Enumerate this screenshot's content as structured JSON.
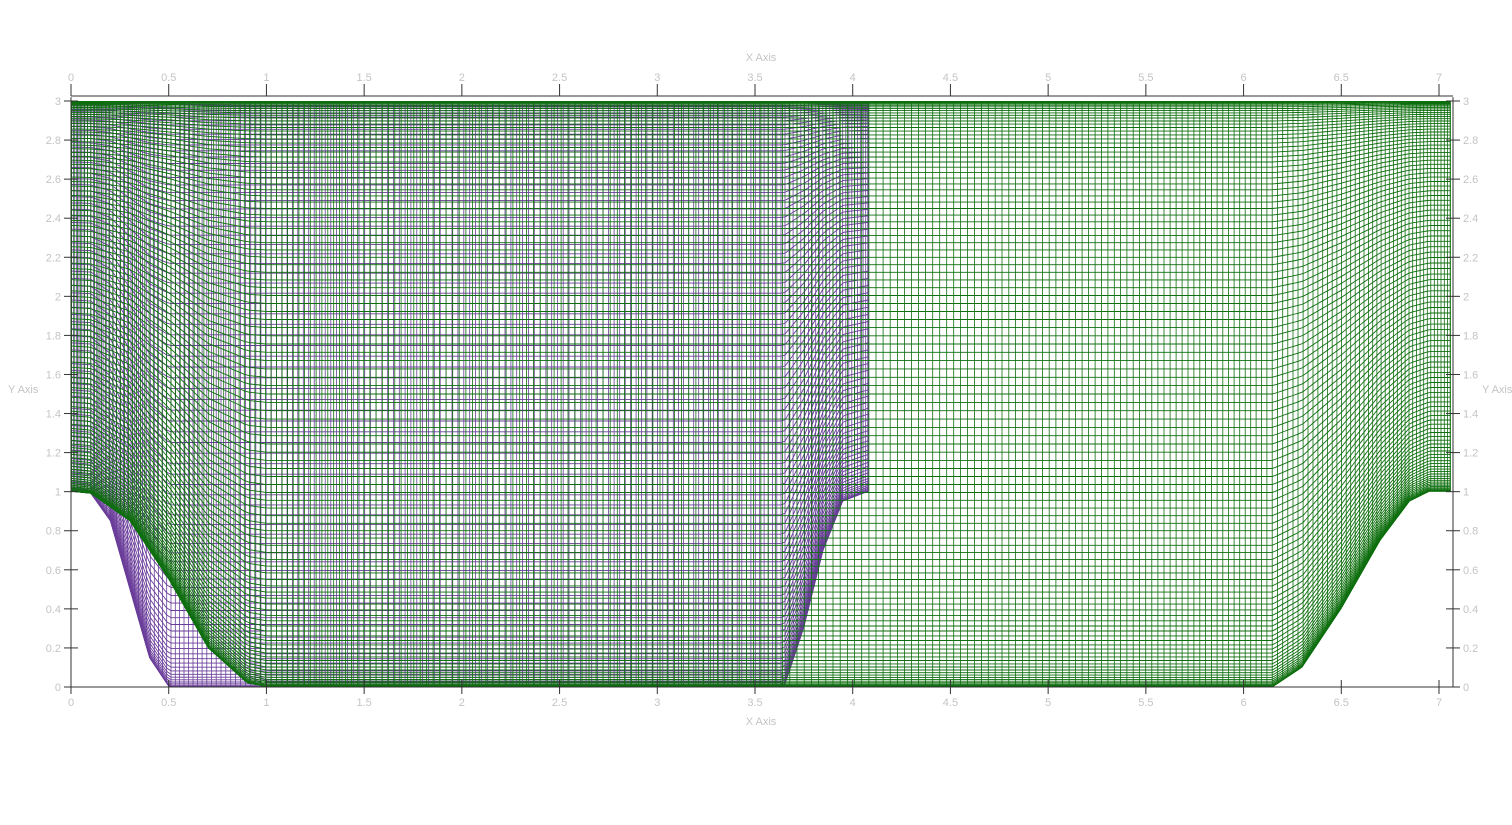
{
  "chart_data": {
    "type": "mesh",
    "xlabel_top": "X Axis",
    "xlabel_bottom": "X Axis",
    "ylabel_left": "Y Axis",
    "ylabel_right": "Y Axis",
    "xlim": [
      0,
      7.06
    ],
    "ylim": [
      0,
      3.02
    ],
    "x_ticks": [
      "0",
      "0.5",
      "1",
      "1.5",
      "2",
      "2.5",
      "3",
      "3.5",
      "4",
      "4.5",
      "5",
      "5.5",
      "6",
      "6.5",
      "7"
    ],
    "y_ticks": [
      "0",
      "0.2",
      "0.4",
      "0.6",
      "0.8",
      "1",
      "1.2",
      "1.4",
      "1.6",
      "1.8",
      "2",
      "2.2",
      "2.4",
      "2.6",
      "2.8",
      "3"
    ],
    "grid": false,
    "colors": {
      "mesh_green": "#0d6e0d",
      "mesh_purple": "#6a3d9a",
      "axis": "#333333",
      "tick_label": "#c4c4c4"
    },
    "series": [
      {
        "mesh": "purple",
        "x_range": [
          0,
          4.08
        ],
        "top": 3.0,
        "outline": [
          [
            0,
            1.0
          ],
          [
            0.1,
            0.99
          ],
          [
            0.2,
            0.85
          ],
          [
            0.3,
            0.5
          ],
          [
            0.4,
            0.15
          ],
          [
            0.5,
            0.0
          ],
          [
            3.65,
            0.0
          ],
          [
            3.75,
            0.3
          ],
          [
            3.85,
            0.7
          ],
          [
            3.95,
            0.95
          ],
          [
            4.08,
            1.0
          ]
        ]
      },
      {
        "mesh": "green",
        "x_range": [
          0,
          7.06
        ],
        "top": 3.0,
        "outline": [
          [
            0,
            1.0
          ],
          [
            0.1,
            0.99
          ],
          [
            0.3,
            0.85
          ],
          [
            0.5,
            0.55
          ],
          [
            0.7,
            0.2
          ],
          [
            0.9,
            0.02
          ],
          [
            1.0,
            0.0
          ],
          [
            6.15,
            0.0
          ],
          [
            6.3,
            0.1
          ],
          [
            6.5,
            0.4
          ],
          [
            6.7,
            0.75
          ],
          [
            6.85,
            0.95
          ],
          [
            6.95,
            1.0
          ],
          [
            7.06,
            1.0
          ]
        ]
      }
    ]
  }
}
